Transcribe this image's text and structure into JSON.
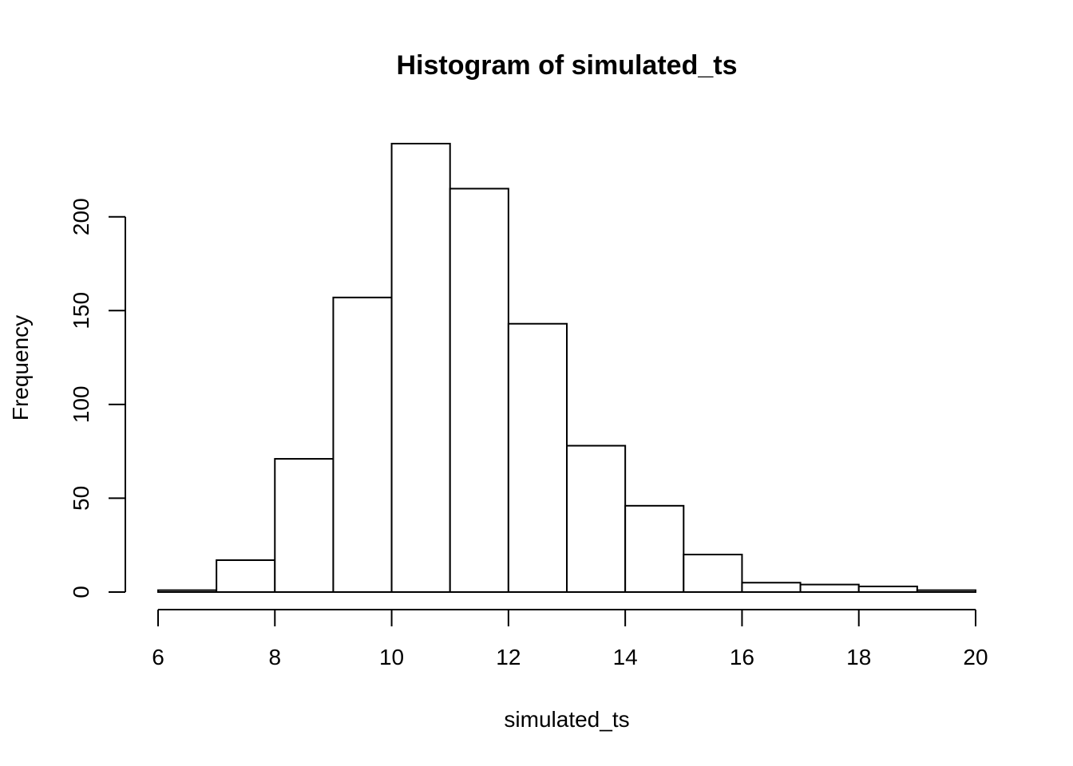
{
  "chart_data": {
    "type": "bar",
    "title": "Histogram of simulated_ts",
    "xlabel": "simulated_ts",
    "ylabel": "Frequency",
    "bins": [
      {
        "start": 6,
        "end": 7,
        "count": 1
      },
      {
        "start": 7,
        "end": 8,
        "count": 17
      },
      {
        "start": 8,
        "end": 9,
        "count": 71
      },
      {
        "start": 9,
        "end": 10,
        "count": 157
      },
      {
        "start": 10,
        "end": 11,
        "count": 239
      },
      {
        "start": 11,
        "end": 12,
        "count": 215
      },
      {
        "start": 12,
        "end": 13,
        "count": 143
      },
      {
        "start": 13,
        "end": 14,
        "count": 78
      },
      {
        "start": 14,
        "end": 15,
        "count": 46
      },
      {
        "start": 15,
        "end": 16,
        "count": 20
      },
      {
        "start": 16,
        "end": 17,
        "count": 5
      },
      {
        "start": 17,
        "end": 18,
        "count": 4
      },
      {
        "start": 18,
        "end": 19,
        "count": 3
      },
      {
        "start": 19,
        "end": 20,
        "count": 1
      }
    ],
    "xlim": [
      6,
      20
    ],
    "ylim": [
      0,
      239
    ],
    "x_ticks": [
      6,
      8,
      10,
      12,
      14,
      16,
      18,
      20
    ],
    "y_ticks": [
      0,
      50,
      100,
      150,
      200
    ],
    "grid": false,
    "legend": "none"
  }
}
